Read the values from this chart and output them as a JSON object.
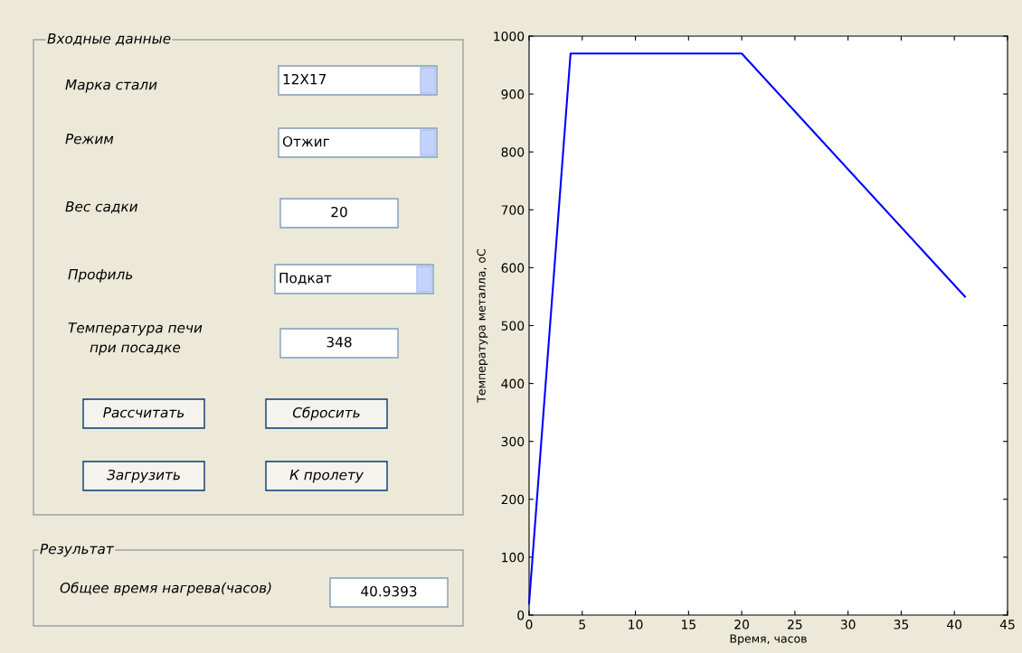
{
  "chart_data": [
    {
      "type": "other",
      "annotations": [
        "Входные данные",
        "Марка стали",
        "12Х17",
        "Режим",
        "Отжиг",
        "Вес садки",
        "20",
        "Профиль",
        "Подкат",
        "Температура печи\nпри посадке",
        "348",
        "Рассчитать",
        "Сбросить",
        "Загрузить",
        "К пролету",
        "Результат",
        "Общее время нагрева(часов)",
        "40.9393"
      ]
    },
    {
      "type": "line",
      "xlabel": "Время, часов",
      "ylabel": "Температура металла, оС",
      "series": [
        {
          "color": "#0000ff",
          "x": [
            0,
            3.9,
            20,
            41
          ],
          "values": [
            20,
            970,
            970,
            550
          ]
        }
      ],
      "xlim": [
        0,
        45
      ],
      "ylim": [
        0,
        1000
      ],
      "xticks": [
        0,
        5,
        10,
        15,
        20,
        25,
        30,
        35,
        40,
        45
      ],
      "yticks": [
        0,
        100,
        200,
        300,
        400,
        500,
        600,
        700,
        800,
        900,
        1000
      ],
      "grid": false,
      "legend": false,
      "marker": "none",
      "line_style": "solid"
    }
  ]
}
